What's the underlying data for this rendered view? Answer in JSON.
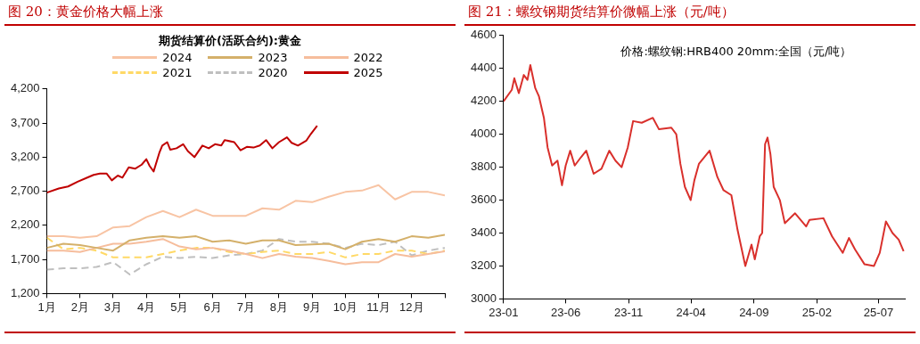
{
  "chart_data": [
    {
      "type": "line",
      "title": "图 20：黄金价格大幅上涨",
      "subtitle": "期货结算价(活跃合约):黄金",
      "legend": "top",
      "marker": "none",
      "x": [
        1,
        1.5,
        2,
        2.5,
        3,
        3.5,
        4,
        4.5,
        5,
        5.5,
        6,
        6.5,
        7,
        7.5,
        8,
        8.5,
        9,
        9.5,
        10,
        10.5,
        11,
        11.5,
        12,
        12.5,
        13
      ],
      "xlim": [
        1,
        13
      ],
      "xticks": [
        {
          "value": 1,
          "label": "1月"
        },
        {
          "value": 2,
          "label": "2月"
        },
        {
          "value": 3,
          "label": "3月"
        },
        {
          "value": 4,
          "label": "4月"
        },
        {
          "value": 5,
          "label": "5月"
        },
        {
          "value": 6,
          "label": "6月"
        },
        {
          "value": 7,
          "label": "7月"
        },
        {
          "value": 8,
          "label": "8月"
        },
        {
          "value": 9,
          "label": "9月"
        },
        {
          "value": 10,
          "label": "10月"
        },
        {
          "value": 11,
          "label": "11月"
        },
        {
          "value": 12,
          "label": "12月"
        },
        {
          "value": 13,
          "label": null
        }
      ],
      "ylim": [
        1200,
        4200
      ],
      "yticks": [
        {
          "value": 1200,
          "label": "1,200"
        },
        {
          "value": 1700,
          "label": "1,700"
        },
        {
          "value": 2200,
          "label": "2,200"
        },
        {
          "value": 2700,
          "label": "2,700"
        },
        {
          "value": 3200,
          "label": "3,200"
        },
        {
          "value": 3700,
          "label": "3,700"
        },
        {
          "value": 4200,
          "label": "4,200"
        }
      ],
      "series": [
        {
          "name": "2024",
          "color": "#f8c4a4",
          "line_style": "solid",
          "values": [
            2040,
            2040,
            2020,
            2040,
            2170,
            2190,
            2320,
            2410,
            2320,
            2430,
            2340,
            2340,
            2340,
            2450,
            2430,
            2560,
            2540,
            2620,
            2690,
            2710,
            2790,
            2580,
            2690,
            2690,
            2640
          ]
        },
        {
          "name": "2023",
          "color": "#d4b06a",
          "line_style": "solid",
          "values": [
            1870,
            1930,
            1910,
            1870,
            1830,
            1980,
            2020,
            2040,
            2020,
            2040,
            1960,
            1980,
            1930,
            1980,
            1980,
            1910,
            1920,
            1930,
            1850,
            1960,
            2000,
            1960,
            2040,
            2020,
            2060
          ]
        },
        {
          "name": "2022",
          "color": "#f6bd9c",
          "line_style": "solid",
          "values": [
            1830,
            1830,
            1810,
            1870,
            1930,
            1930,
            1960,
            2000,
            1890,
            1850,
            1870,
            1830,
            1780,
            1720,
            1780,
            1740,
            1720,
            1680,
            1630,
            1660,
            1660,
            1780,
            1740,
            1780,
            1820
          ]
        },
        {
          "name": "2021",
          "color": "#ffd966",
          "line_style": "dashed",
          "values": [
            2020,
            1850,
            1870,
            1830,
            1730,
            1730,
            1730,
            1780,
            1830,
            1870,
            1870,
            1810,
            1780,
            1810,
            1830,
            1780,
            1780,
            1810,
            1730,
            1780,
            1780,
            1830,
            1830,
            1780,
            1830
          ]
        },
        {
          "name": "2020",
          "color": "#bfbfbf",
          "line_style": "dashed",
          "values": [
            1550,
            1570,
            1570,
            1590,
            1660,
            1480,
            1630,
            1740,
            1720,
            1740,
            1720,
            1760,
            1780,
            1830,
            2000,
            1960,
            1960,
            1930,
            1870,
            1930,
            1910,
            1960,
            1760,
            1830,
            1870
          ]
        },
        {
          "name": "2025",
          "color": "#c00000",
          "line_style": "solid",
          "x": [
            1,
            1.36,
            1.64,
            1.93,
            2.22,
            2.41,
            2.6,
            2.8,
            2.96,
            3.14,
            3.28,
            3.47,
            3.66,
            3.86,
            4,
            4.1,
            4.22,
            4.39,
            4.48,
            4.63,
            4.72,
            4.91,
            5.11,
            5.25,
            5.45,
            5.69,
            5.88,
            6.07,
            6.26,
            6.36,
            6.65,
            6.84,
            7.03,
            7.23,
            7.42,
            7.61,
            7.8,
            8,
            8.24,
            8.38,
            8.57,
            8.82,
            8.96,
            9.15
          ],
          "values": [
            2680,
            2740,
            2770,
            2840,
            2900,
            2940,
            2960,
            2960,
            2860,
            2930,
            2900,
            3050,
            3030,
            3090,
            3170,
            3070,
            2990,
            3260,
            3370,
            3420,
            3310,
            3330,
            3390,
            3290,
            3200,
            3370,
            3330,
            3390,
            3370,
            3450,
            3420,
            3300,
            3350,
            3340,
            3370,
            3450,
            3330,
            3420,
            3490,
            3410,
            3370,
            3440,
            3540,
            3660
          ]
        }
      ]
    },
    {
      "type": "line",
      "title": "图 21：螺纹钢期货结算价微幅上涨（元/吨）",
      "marker": "none",
      "annotations": [
        "价格:螺纹钢:HRB400 20mm:全国（元/吨）"
      ],
      "xlim": [
        "2023-01-01",
        "2025-09-03"
      ],
      "xticks": [
        {
          "value": "2023-01-01",
          "label": "23-01"
        },
        {
          "value": "2023-06-01",
          "label": "23-06"
        },
        {
          "value": "2023-11-01",
          "label": "23-11"
        },
        {
          "value": "2024-04-01",
          "label": "24-04"
        },
        {
          "value": "2024-09-01",
          "label": "24-09"
        },
        {
          "value": "2025-02-01",
          "label": "25-02"
        },
        {
          "value": "2025-07-01",
          "label": "25-07"
        }
      ],
      "ylim": [
        3000,
        4600
      ],
      "yticks": [
        3000,
        3200,
        3400,
        3600,
        3800,
        4000,
        4200,
        4400,
        4600
      ],
      "color": "#d9302c",
      "line_style": "solid",
      "x": [
        "2023-01-01",
        "2023-01-21",
        "2023-01-27",
        "2023-02-07",
        "2023-02-19",
        "2023-02-28",
        "2023-03-07",
        "2023-03-19",
        "2023-03-28",
        "2023-04-09",
        "2023-04-18",
        "2023-04-29",
        "2023-05-12",
        "2023-05-23",
        "2023-06-01",
        "2023-06-12",
        "2023-06-23",
        "2023-07-08",
        "2023-07-21",
        "2023-08-08",
        "2023-08-27",
        "2023-09-15",
        "2023-09-30",
        "2023-10-15",
        "2023-10-30",
        "2023-11-12",
        "2023-12-03",
        "2023-12-30",
        "2024-01-14",
        "2024-02-13",
        "2024-02-25",
        "2024-03-06",
        "2024-03-17",
        "2024-03-31",
        "2024-04-09",
        "2024-04-20",
        "2024-05-16",
        "2024-06-04",
        "2024-06-19",
        "2024-07-08",
        "2024-07-23",
        "2024-08-11",
        "2024-08-26",
        "2024-09-03",
        "2024-09-15",
        "2024-09-21",
        "2024-09-28",
        "2024-10-04",
        "2024-10-11",
        "2024-10-19",
        "2024-11-03",
        "2024-11-15",
        "2024-12-10",
        "2025-01-06",
        "2025-01-14",
        "2025-02-17",
        "2025-03-10",
        "2025-04-05",
        "2025-04-20",
        "2025-05-05",
        "2025-05-28",
        "2025-06-20",
        "2025-07-04",
        "2025-07-19",
        "2025-08-04",
        "2025-08-19",
        "2025-08-31"
      ],
      "values": [
        4200,
        4270,
        4340,
        4250,
        4360,
        4330,
        4420,
        4280,
        4230,
        4100,
        3920,
        3810,
        3840,
        3690,
        3810,
        3900,
        3810,
        3860,
        3900,
        3760,
        3790,
        3900,
        3840,
        3800,
        3920,
        4080,
        4070,
        4100,
        4030,
        4040,
        4000,
        3820,
        3680,
        3600,
        3720,
        3820,
        3900,
        3740,
        3660,
        3630,
        3420,
        3200,
        3330,
        3240,
        3380,
        3400,
        3940,
        3980,
        3880,
        3680,
        3600,
        3460,
        3520,
        3440,
        3480,
        3490,
        3380,
        3280,
        3370,
        3300,
        3210,
        3200,
        3280,
        3470,
        3400,
        3360,
        3290
      ]
    }
  ]
}
